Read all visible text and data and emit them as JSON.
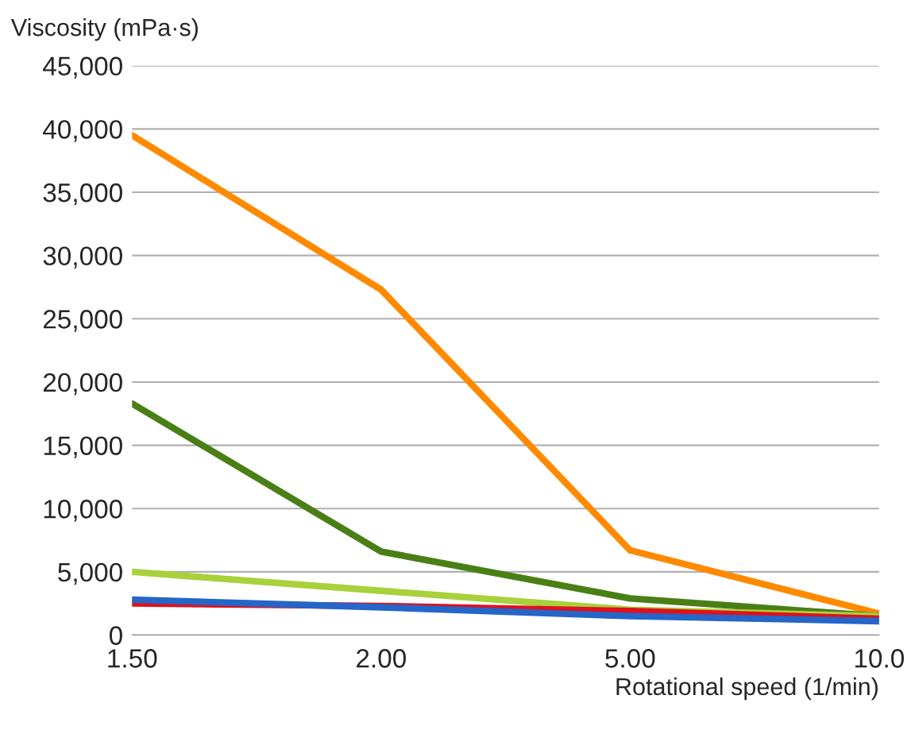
{
  "chart_data": {
    "type": "line",
    "ylabel": "Viscosity (mPa·s)",
    "xlabel": "Rotational speed (1/min)",
    "categories": [
      "1.50",
      "2.00",
      "5.00",
      "10.0"
    ],
    "series": [
      {
        "color": "#ff8a00",
        "values": [
          39500,
          27300,
          6700,
          1700
        ]
      },
      {
        "color": "#4a7f16",
        "values": [
          18300,
          6600,
          2900,
          1500
        ]
      },
      {
        "color": "#a8d13c",
        "values": [
          5000,
          3500,
          2000,
          1500
        ]
      },
      {
        "color": "#e0101c",
        "values": [
          2500,
          2300,
          1900,
          1300
        ]
      },
      {
        "color": "#2566c8",
        "values": [
          2800,
          2200,
          1500,
          1100
        ]
      }
    ],
    "ylim": [
      0,
      45000
    ],
    "yticks": [
      {
        "value": 0,
        "label": "0"
      },
      {
        "value": 5000,
        "label": "5,000"
      },
      {
        "value": 10000,
        "label": "10,000"
      },
      {
        "value": 15000,
        "label": "15,000"
      },
      {
        "value": 20000,
        "label": "20,000"
      },
      {
        "value": 25000,
        "label": "25,000"
      },
      {
        "value": 30000,
        "label": "30,000"
      },
      {
        "value": 35000,
        "label": "35,000"
      },
      {
        "value": 40000,
        "label": "40,000"
      },
      {
        "value": 45000,
        "label": "45,000"
      }
    ],
    "grid": "y",
    "legend": false
  }
}
